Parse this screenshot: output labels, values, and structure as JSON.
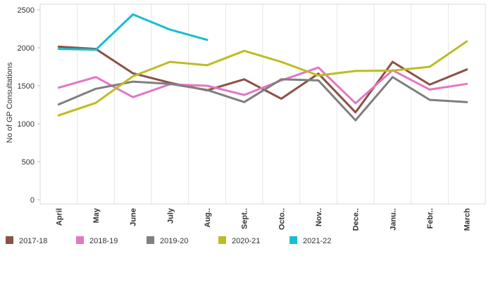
{
  "chart_data": {
    "type": "line",
    "title": "",
    "xlabel": "",
    "ylabel": "No of GP Consultations",
    "ylim": [
      0,
      2500
    ],
    "yticks": [
      0,
      500,
      1000,
      1500,
      2000,
      2500
    ],
    "grid": "vertical",
    "legend_position": "bottom",
    "categories": [
      "April",
      "May",
      "June",
      "July",
      "Aug..",
      "Sept..",
      "Octo..",
      "Nov..",
      "Dece..",
      "Janu..",
      "Febr..",
      "March"
    ],
    "series": [
      {
        "name": "2017-18",
        "color": "#8b5146",
        "values": [
          2015,
          1985,
          1665,
          1540,
          1440,
          1585,
          1330,
          1660,
          1150,
          1815,
          1515,
          1715
        ]
      },
      {
        "name": "2018-19",
        "color": "#e377c2",
        "values": [
          1475,
          1615,
          1350,
          1520,
          1500,
          1380,
          1570,
          1740,
          1270,
          1705,
          1450,
          1525
        ]
      },
      {
        "name": "2019-20",
        "color": "#7f7f7f",
        "values": [
          1255,
          1460,
          1555,
          1525,
          1445,
          1285,
          1585,
          1570,
          1045,
          1615,
          1315,
          1285
        ]
      },
      {
        "name": "2020-21",
        "color": "#bcbd22",
        "values": [
          1110,
          1275,
          1625,
          1815,
          1770,
          1960,
          1815,
          1635,
          1695,
          1700,
          1750,
          2085
        ]
      },
      {
        "name": "2021-22",
        "color": "#17becf",
        "values": [
          1985,
          1975,
          2440,
          2240,
          2105,
          null,
          null,
          null,
          null,
          null,
          null,
          null
        ]
      }
    ]
  }
}
